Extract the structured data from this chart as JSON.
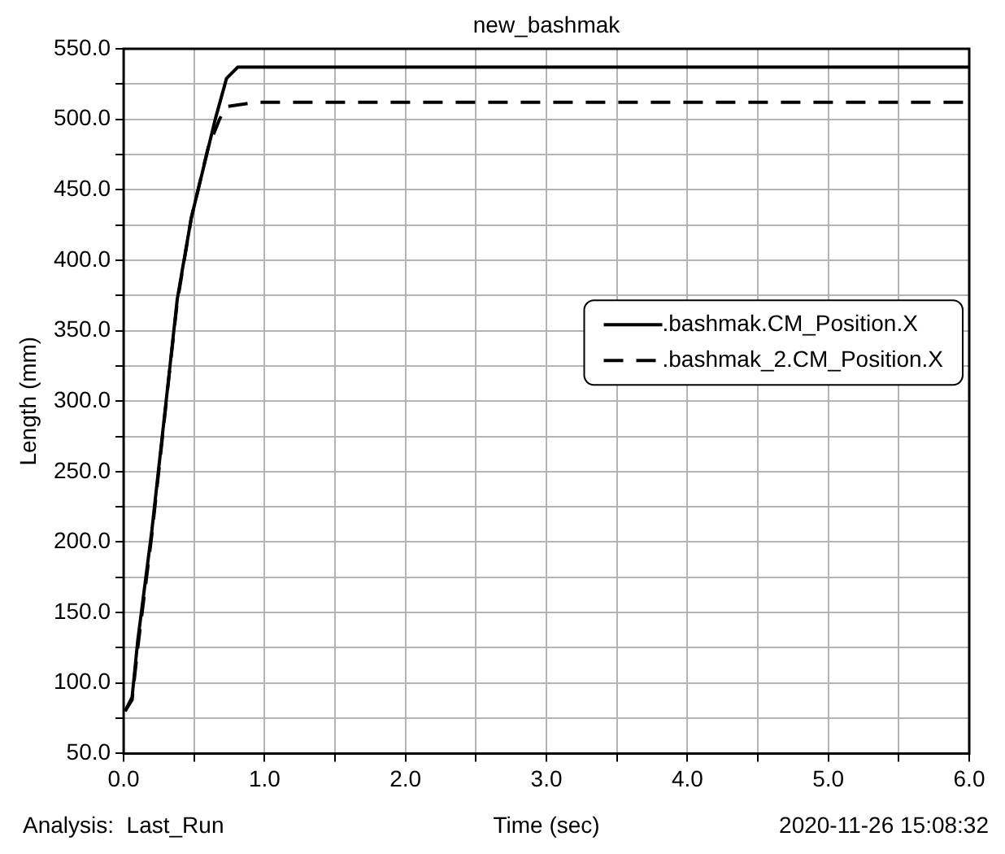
{
  "chart_data": {
    "type": "line",
    "title": "new_bashmak",
    "xlabel": "Time (sec)",
    "ylabel": "Length (mm)",
    "annotations": [
      "Analysis:  Last_Run",
      "2020-11-26 15:08:32"
    ],
    "xlim": [
      0,
      6
    ],
    "ylim": [
      50,
      550
    ],
    "xticks": [
      {
        "value": 0,
        "label": "0.0"
      },
      {
        "value": 0.5,
        "label": null
      },
      {
        "value": 1,
        "label": "1.0"
      },
      {
        "value": 1.5,
        "label": null
      },
      {
        "value": 2,
        "label": "2.0"
      },
      {
        "value": 2.5,
        "label": null
      },
      {
        "value": 3,
        "label": "3.0"
      },
      {
        "value": 3.5,
        "label": null
      },
      {
        "value": 4,
        "label": "4.0"
      },
      {
        "value": 4.5,
        "label": null
      },
      {
        "value": 5,
        "label": "5.0"
      },
      {
        "value": 5.5,
        "label": null
      },
      {
        "value": 6,
        "label": "6.0"
      }
    ],
    "yticks": [
      {
        "value": 50,
        "label": "50.0"
      },
      {
        "value": 75,
        "label": null
      },
      {
        "value": 100,
        "label": "100.0"
      },
      {
        "value": 125,
        "label": null
      },
      {
        "value": 150,
        "label": "150.0"
      },
      {
        "value": 175,
        "label": null
      },
      {
        "value": 200,
        "label": "200.0"
      },
      {
        "value": 225,
        "label": null
      },
      {
        "value": 250,
        "label": "250.0"
      },
      {
        "value": 275,
        "label": null
      },
      {
        "value": 300,
        "label": "300.0"
      },
      {
        "value": 325,
        "label": null
      },
      {
        "value": 350,
        "label": "350.0"
      },
      {
        "value": 375,
        "label": null
      },
      {
        "value": 400,
        "label": "400.0"
      },
      {
        "value": 425,
        "label": null
      },
      {
        "value": 450,
        "label": "450.0"
      },
      {
        "value": 475,
        "label": null
      },
      {
        "value": 500,
        "label": "500.0"
      },
      {
        "value": 525,
        "label": null
      },
      {
        "value": 550,
        "label": "550.0"
      }
    ],
    "grid": true,
    "legend": "right",
    "marker": "none",
    "series": [
      {
        "name": ".bashmak.CM_Position.X",
        "color": "#000000",
        "line_style": "solid",
        "x": [
          0.01,
          0.06,
          0.1,
          0.2,
          0.33,
          0.38,
          0.48,
          0.65,
          0.73,
          0.81,
          6
        ],
        "values": [
          80,
          90,
          130,
          208,
          326,
          372,
          430,
          500,
          529,
          537,
          537
        ]
      },
      {
        "name": ".bashmak_2.CM_Position.X",
        "color": "#000000",
        "line_style": "dashed",
        "x": [
          0.01,
          0.06,
          0.1,
          0.2,
          0.33,
          0.38,
          0.48,
          0.6,
          0.68,
          0.73,
          0.93,
          6
        ],
        "values": [
          80,
          88,
          125,
          205,
          325,
          370,
          430,
          480,
          500,
          509,
          512,
          512
        ]
      }
    ]
  }
}
